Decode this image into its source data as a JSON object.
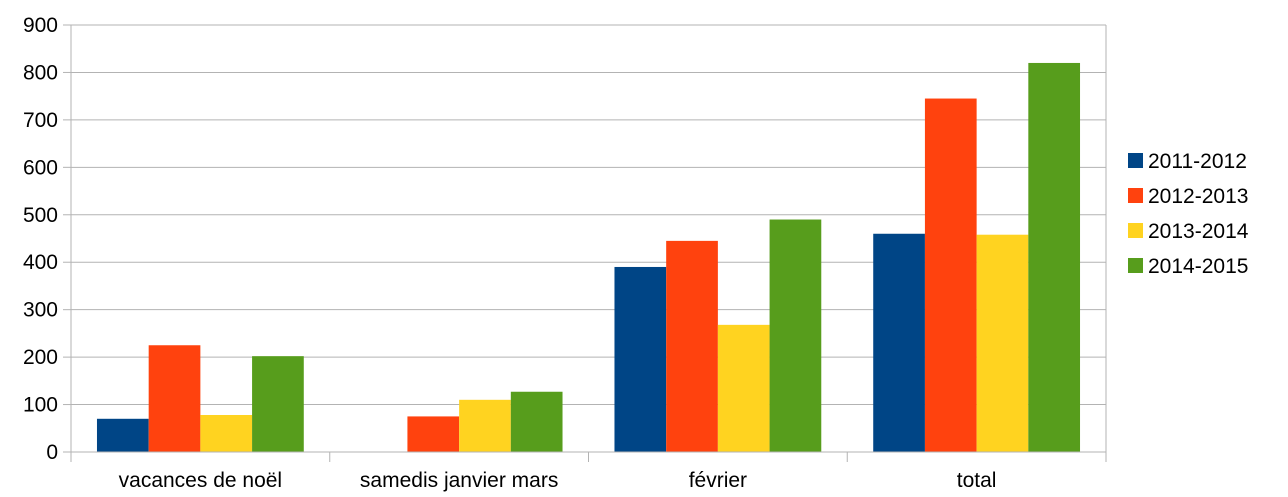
{
  "chart_data": {
    "type": "bar",
    "title": "",
    "xlabel": "",
    "ylabel": "",
    "ylim": [
      0,
      900
    ],
    "y_ticks": [
      0,
      100,
      200,
      300,
      400,
      500,
      600,
      700,
      800,
      900
    ],
    "grid": true,
    "legend_position": "right",
    "categories": [
      "vacances de noël",
      "samedis janvier mars",
      "février",
      "total"
    ],
    "series": [
      {
        "name": "2011-2012",
        "color": "#004586",
        "values": [
          70,
          null,
          390,
          460
        ]
      },
      {
        "name": "2012-2013",
        "color": "#FF420E",
        "values": [
          225,
          75,
          445,
          745
        ]
      },
      {
        "name": "2013-2014",
        "color": "#FFD320",
        "values": [
          78,
          110,
          268,
          458
        ]
      },
      {
        "name": "2014-2015",
        "color": "#579D1C",
        "values": [
          202,
          127,
          490,
          820
        ]
      }
    ]
  }
}
